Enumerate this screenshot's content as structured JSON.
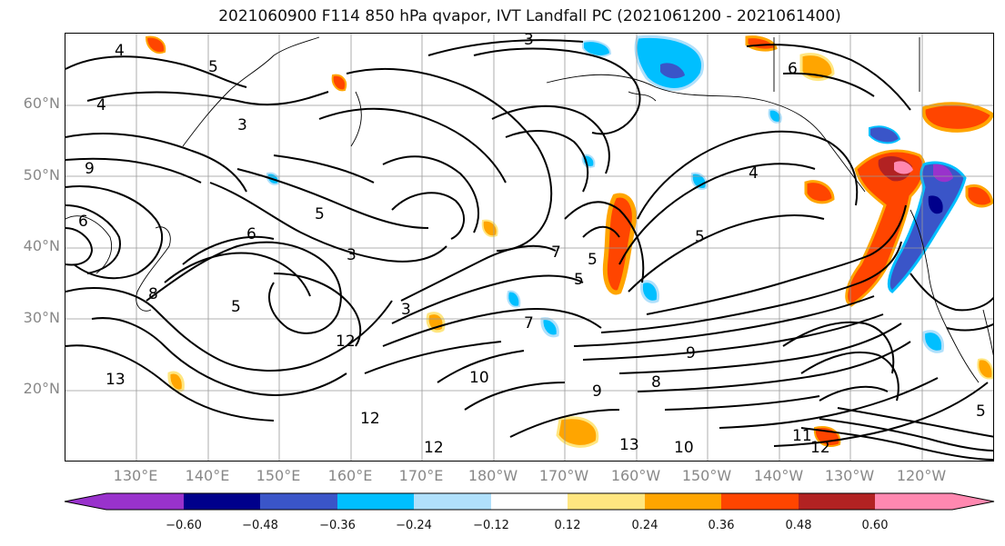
{
  "title": "2021060900 F114 850 hPa qvapor, IVT Landfall PC (2021061200 - 2021061400)",
  "lat_labels": [
    "60°N",
    "50°N",
    "40°N",
    "30°N",
    "20°N"
  ],
  "lon_labels": [
    "130°E",
    "140°E",
    "150°E",
    "160°E",
    "170°E",
    "180°W",
    "170°W",
    "160°W",
    "150°W",
    "140°W",
    "130°W",
    "120°W"
  ],
  "colorbar": {
    "ticks": [
      "−0.60",
      "−0.48",
      "−0.36",
      "−0.24",
      "−0.12",
      "0.12",
      "0.24",
      "0.36",
      "0.48",
      "0.60"
    ],
    "colors": [
      "#9932cc",
      "#00008b",
      "#3a55c8",
      "#00bfff",
      "#b0e0fb",
      "#ffffff",
      "#ffe680",
      "#ffa500",
      "#ff4500",
      "#b22222",
      "#ff88b0"
    ]
  },
  "contour_labels": [
    "4",
    "4",
    "5",
    "3",
    "6",
    "6",
    "5",
    "3",
    "9",
    "8",
    "5",
    "3",
    "5",
    "3",
    "7",
    "5",
    "5",
    "6",
    "12",
    "10",
    "13",
    "12",
    "12",
    "9",
    "8",
    "13",
    "10",
    "11",
    "12",
    "5",
    "7",
    "9",
    "4"
  ]
}
